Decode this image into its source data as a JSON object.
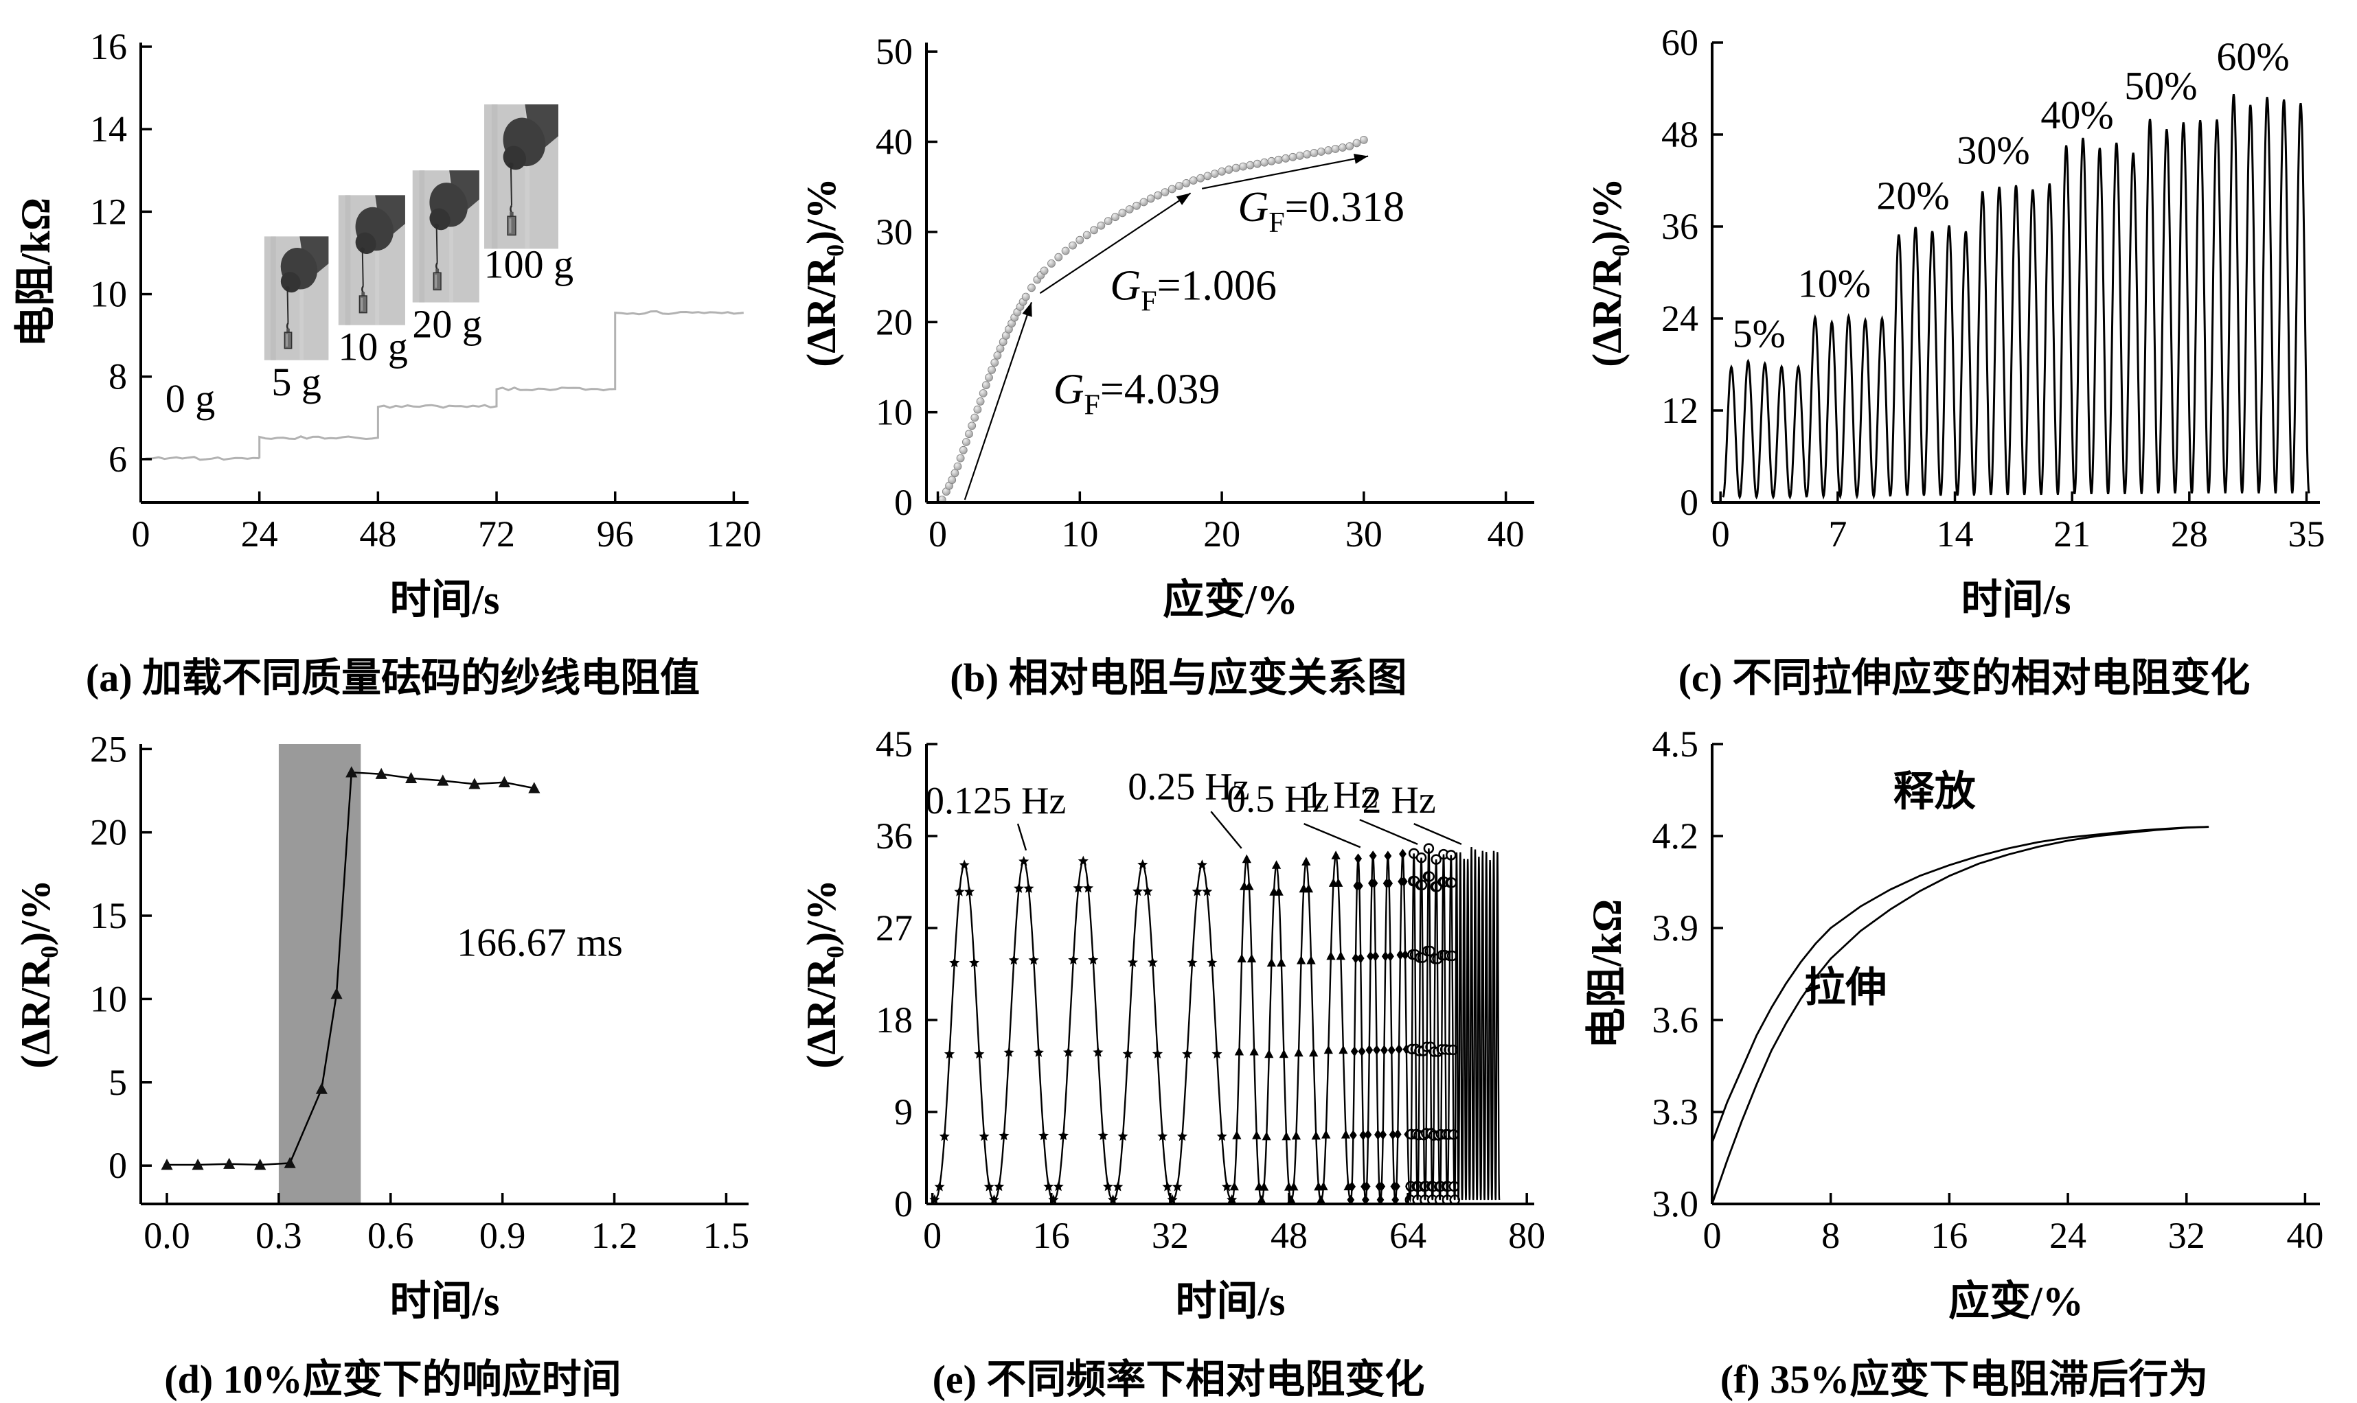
{
  "chart_data": [
    {
      "id": "a",
      "type": "line",
      "caption": "(a) 加载不同质量砝码的纱线电阻值",
      "xlabel": "时间/s",
      "ylabel": "电阻/kΩ",
      "xlim": [
        0,
        123
      ],
      "ylim": [
        4.95,
        16.1
      ],
      "xticks": {
        "values": [
          0,
          24,
          48,
          72,
          96,
          120
        ],
        "labels": [
          "0",
          "24",
          "48",
          "72",
          "96",
          "120"
        ]
      },
      "yticks": {
        "values": [
          6,
          8,
          10,
          12,
          14,
          16
        ],
        "labels": [
          "6",
          "8",
          "10",
          "12",
          "14",
          "16"
        ]
      },
      "line_color": "#b2b2b2",
      "steps": [
        {
          "mass": "0 g",
          "x0": 0,
          "x1": 24,
          "y": 6.02
        },
        {
          "mass": "5 g",
          "x0": 24,
          "x1": 48,
          "y": 6.52
        },
        {
          "mass": "10 g",
          "x0": 48,
          "x1": 72,
          "y": 7.28
        },
        {
          "mass": "20 g",
          "x0": 72,
          "x1": 96,
          "y": 7.7
        },
        {
          "mass": "100 g",
          "x0": 96,
          "x1": 122,
          "y": 9.55
        }
      ],
      "labels": [
        {
          "text": "0 g",
          "x": 10,
          "y": 7.15
        },
        {
          "text": "5 g",
          "x": 31.5,
          "y": 7.55
        },
        {
          "text": "10 g",
          "x": 47,
          "y": 8.4
        },
        {
          "text": "20 g",
          "x": 62,
          "y": 8.95
        },
        {
          "text": "100 g",
          "x": 78.5,
          "y": 10.4
        }
      ],
      "photos": [
        {
          "x0": 25,
          "x1": 38,
          "y0": 8.4,
          "y1": 11.4
        },
        {
          "x0": 40,
          "x1": 53.5,
          "y0": 9.25,
          "y1": 12.4
        },
        {
          "x0": 55,
          "x1": 68.5,
          "y0": 9.8,
          "y1": 13.0
        },
        {
          "x0": 69.5,
          "x1": 84.5,
          "y0": 11.1,
          "y1": 14.6
        }
      ]
    },
    {
      "id": "b",
      "type": "scatter",
      "caption": "(b) 相对电阻与应变关系图",
      "xlabel": "应变/%",
      "ylabel": "(ΔR/R₀)/%",
      "xlim": [
        -0.8,
        42
      ],
      "ylim": [
        0,
        51
      ],
      "xticks": {
        "values": [
          0,
          10,
          20,
          30,
          40
        ],
        "labels": [
          "0",
          "10",
          "20",
          "30",
          "40"
        ]
      },
      "yticks": {
        "values": [
          0,
          10,
          20,
          30,
          40,
          50
        ],
        "labels": [
          "0",
          "10",
          "20",
          "30",
          "40",
          "50"
        ]
      },
      "marker_fill": "#b0b0b0",
      "marker_edge": "#7f7f7f",
      "points": [
        [
          0.3,
          0.3
        ],
        [
          0.6,
          1.2
        ],
        [
          1,
          2.5
        ],
        [
          1.4,
          4
        ],
        [
          1.8,
          5.8
        ],
        [
          2.2,
          7.6
        ],
        [
          2.6,
          9.4
        ],
        [
          3,
          11.2
        ],
        [
          3.4,
          13
        ],
        [
          3.8,
          14.7
        ],
        [
          4.2,
          16.3
        ],
        [
          4.6,
          17.8
        ],
        [
          5,
          19.2
        ],
        [
          5.4,
          20.5
        ],
        [
          5.8,
          21.7
        ],
        [
          6.2,
          22.8
        ],
        [
          6.6,
          23.8
        ],
        [
          7,
          24.7
        ],
        [
          7.5,
          25.7
        ],
        [
          8,
          26.5
        ],
        [
          8.5,
          27.2
        ],
        [
          9,
          27.9
        ],
        [
          9.5,
          28.5
        ],
        [
          10,
          29.1
        ],
        [
          11,
          30.2
        ],
        [
          12,
          31.2
        ],
        [
          13,
          32.1
        ],
        [
          14,
          32.9
        ],
        [
          15,
          33.7
        ],
        [
          16,
          34.4
        ],
        [
          17,
          35.1
        ],
        [
          18,
          35.7
        ],
        [
          19,
          36.2
        ],
        [
          20,
          36.7
        ],
        [
          21,
          37.1
        ],
        [
          22,
          37.4
        ],
        [
          23,
          37.7
        ],
        [
          24,
          38.0
        ],
        [
          25,
          38.3
        ],
        [
          26,
          38.6
        ],
        [
          27,
          38.9
        ],
        [
          28,
          39.2
        ],
        [
          29,
          39.5
        ],
        [
          30,
          40.2
        ]
      ],
      "fit_lines": [
        {
          "x1": 1.9,
          "y1": 0.3,
          "x2": 6.6,
          "y2": 22.2
        },
        {
          "x1": 7.2,
          "y1": 23.2,
          "x2": 17.8,
          "y2": 34.3
        },
        {
          "x1": 18.6,
          "y1": 34.8,
          "x2": 30.3,
          "y2": 38.4
        }
      ],
      "gf_labels": [
        {
          "pre": "G",
          "sub": "F",
          "post": "=4.039",
          "x": 14,
          "y": 11
        },
        {
          "pre": "G",
          "sub": "F",
          "post": "=1.006",
          "x": 18,
          "y": 22.5
        },
        {
          "pre": "G",
          "sub": "F",
          "post": "=0.318",
          "x": 27,
          "y": 31.2
        }
      ]
    },
    {
      "id": "c",
      "type": "line",
      "caption": "(c) 不同拉伸应变的相对电阻变化",
      "xlabel": "时间/s",
      "ylabel": "(ΔR/R₀)/%",
      "xlim": [
        -0.5,
        35.8
      ],
      "ylim": [
        0,
        60
      ],
      "xticks": {
        "values": [
          0,
          7,
          14,
          21,
          28,
          35
        ],
        "labels": [
          "0",
          "7",
          "14",
          "21",
          "28",
          "35"
        ]
      },
      "yticks": {
        "values": [
          0,
          12,
          24,
          36,
          48,
          60
        ],
        "labels": [
          "0",
          "12",
          "24",
          "36",
          "48",
          "60"
        ]
      },
      "line_color": "#000000",
      "wave_groups": [
        {
          "label": "5%",
          "x0": 0.15,
          "x1": 5.15,
          "cycles": 5,
          "peak": 18.0,
          "valley": 0.7,
          "label_x": 2.3,
          "label_y": 20.3
        },
        {
          "label": "10%",
          "x0": 5.15,
          "x1": 10.15,
          "cycles": 5,
          "peak": 24.0,
          "valley": 0.8,
          "label_x": 6.8,
          "label_y": 26.8
        },
        {
          "label": "20%",
          "x0": 10.15,
          "x1": 15.15,
          "cycles": 5,
          "peak": 35.5,
          "valley": 0.9,
          "label_x": 11.5,
          "label_y": 38.3
        },
        {
          "label": "30%",
          "x0": 15.15,
          "x1": 20.15,
          "cycles": 5,
          "peak": 41.5,
          "valley": 1.0,
          "label_x": 16.3,
          "label_y": 44.2
        },
        {
          "label": "40%",
          "x0": 20.15,
          "x1": 25.15,
          "cycles": 5,
          "peak": 46.5,
          "valley": 1.1,
          "label_x": 21.3,
          "label_y": 48.8
        },
        {
          "label": "50%",
          "x0": 25.15,
          "x1": 30.15,
          "cycles": 5,
          "peak": 49.5,
          "valley": 1.2,
          "label_x": 26.3,
          "label_y": 52.6
        },
        {
          "label": "60%",
          "x0": 30.15,
          "x1": 35.15,
          "cycles": 5,
          "peak": 53.0,
          "valley": 1.2,
          "label_x": 31.8,
          "label_y": 56.4
        }
      ]
    },
    {
      "id": "d",
      "type": "line",
      "caption": "(d) 10%应变下的响应时间",
      "xlabel": "时间/s",
      "ylabel": "(ΔR/R₀)/%",
      "xlim": [
        -0.07,
        1.56
      ],
      "ylim": [
        -2.3,
        25.3
      ],
      "xticks": {
        "values": [
          0,
          0.3,
          0.6,
          0.9,
          1.2,
          1.5
        ],
        "labels": [
          "0.0",
          "0.3",
          "0.6",
          "0.9",
          "1.2",
          "1.5"
        ]
      },
      "yticks": {
        "values": [
          0,
          5,
          10,
          15,
          20,
          25
        ],
        "labels": [
          "0",
          "5",
          "10",
          "15",
          "20",
          "25"
        ]
      },
      "band": {
        "x0": 0.3,
        "x1": 0.52,
        "color": "#9a9a9a"
      },
      "marker": "triangle",
      "points": [
        [
          0,
          0.05
        ],
        [
          0.083,
          0.05
        ],
        [
          0.167,
          0.1
        ],
        [
          0.25,
          0.05
        ],
        [
          0.33,
          0.15
        ],
        [
          0.415,
          4.6
        ],
        [
          0.455,
          10.3
        ],
        [
          0.495,
          23.6
        ],
        [
          0.575,
          23.5
        ],
        [
          0.655,
          23.25
        ],
        [
          0.74,
          23.1
        ],
        [
          0.825,
          22.9
        ],
        [
          0.905,
          23.0
        ],
        [
          0.985,
          22.65
        ]
      ],
      "annotation": {
        "text": "166.67 ms",
        "x": 1.0,
        "y": 12.6
      }
    },
    {
      "id": "e",
      "type": "line",
      "caption": "(e) 不同频率下相对电阻变化",
      "xlabel": "时间/s",
      "ylabel": "(ΔR/R₀)/%",
      "xlim": [
        -0.8,
        81
      ],
      "ylim": [
        0,
        45
      ],
      "xticks": {
        "values": [
          0,
          16,
          32,
          48,
          64,
          80
        ],
        "labels": [
          "0",
          "16",
          "32",
          "48",
          "64",
          "80"
        ]
      },
      "yticks": {
        "values": [
          0,
          9,
          18,
          27,
          36,
          45
        ],
        "labels": [
          "0",
          "9",
          "18",
          "27",
          "36",
          "45"
        ]
      },
      "freq_groups": [
        {
          "label": "0.125 Hz",
          "x0": 0.3,
          "x1": 40.3,
          "period": 8,
          "peak": 33.6,
          "valley": 0.4,
          "marker": "star",
          "label_x": 8.5,
          "label_y": 38.2,
          "leader": [
            [
              11.5,
              37.2
            ],
            [
              12.6,
              34.6
            ]
          ]
        },
        {
          "label": "0.25 Hz",
          "x0": 40.3,
          "x1": 56.3,
          "period": 4,
          "peak": 33.8,
          "valley": 0.4,
          "marker": "triangle",
          "label_x": 34.5,
          "label_y": 39.6,
          "leader": [
            [
              37.5,
              38.4
            ],
            [
              41.6,
              34.8
            ]
          ]
        },
        {
          "label": "0.5 Hz",
          "x0": 56.3,
          "x1": 64.3,
          "period": 2,
          "peak": 34.0,
          "valley": 0.4,
          "marker": "diamond",
          "label_x": 46.5,
          "label_y": 38.4,
          "leader": [
            [
              50,
              37.2
            ],
            [
              57.6,
              34.9
            ]
          ]
        },
        {
          "label": "1 Hz",
          "x0": 64.3,
          "x1": 70.3,
          "period": 1,
          "peak": 34.3,
          "valley": 0.4,
          "marker": "circle",
          "label_x": 55,
          "label_y": 38.8,
          "leader": [
            [
              57.5,
              37.6
            ],
            [
              65.3,
              35.2
            ]
          ]
        },
        {
          "label": "2 Hz",
          "x0": 70.3,
          "x1": 76.3,
          "period": 0.5,
          "peak": 34.3,
          "valley": 0.4,
          "marker": "none",
          "label_x": 62.8,
          "label_y": 38.3,
          "leader": [
            [
              64.8,
              37.2
            ],
            [
              71.2,
              35.2
            ]
          ]
        }
      ]
    },
    {
      "id": "f",
      "type": "line",
      "caption": "(f) 35%应变下电阻滞后行为",
      "xlabel": "应变/%",
      "ylabel": "电阻/kΩ",
      "xlim": [
        0,
        41
      ],
      "ylim": [
        3.0,
        4.5
      ],
      "xticks": {
        "values": [
          0,
          8,
          16,
          24,
          32,
          40
        ],
        "labels": [
          "0",
          "8",
          "16",
          "24",
          "32",
          "40"
        ]
      },
      "yticks": {
        "values": [
          3.0,
          3.3,
          3.6,
          3.9,
          4.2,
          4.5
        ],
        "labels": [
          "3.0",
          "3.3",
          "3.6",
          "3.9",
          "4.2",
          "4.5"
        ]
      },
      "curves": [
        {
          "name": "拉伸",
          "label_x": 9,
          "label_y": 3.66,
          "points": [
            [
              0,
              3.0
            ],
            [
              1,
              3.14
            ],
            [
              2,
              3.27
            ],
            [
              3,
              3.39
            ],
            [
              4,
              3.5
            ],
            [
              5,
              3.59
            ],
            [
              6,
              3.67
            ],
            [
              7,
              3.74
            ],
            [
              8,
              3.8
            ],
            [
              10,
              3.89
            ],
            [
              12,
              3.96
            ],
            [
              14,
              4.02
            ],
            [
              16,
              4.07
            ],
            [
              18,
              4.11
            ],
            [
              20,
              4.14
            ],
            [
              22,
              4.165
            ],
            [
              24,
              4.185
            ],
            [
              26,
              4.2
            ],
            [
              28,
              4.21
            ],
            [
              30,
              4.22
            ],
            [
              32,
              4.227
            ],
            [
              33.5,
              4.23
            ]
          ]
        },
        {
          "name": "释放",
          "label_x": 15,
          "label_y": 4.3,
          "points": [
            [
              33.5,
              4.23
            ],
            [
              32,
              4.228
            ],
            [
              30,
              4.222
            ],
            [
              28,
              4.215
            ],
            [
              26,
              4.205
            ],
            [
              24,
              4.195
            ],
            [
              22,
              4.18
            ],
            [
              20,
              4.16
            ],
            [
              18,
              4.135
            ],
            [
              16,
              4.105
            ],
            [
              14,
              4.07
            ],
            [
              12,
              4.025
            ],
            [
              10,
              3.97
            ],
            [
              8,
              3.9
            ],
            [
              7,
              3.85
            ],
            [
              6,
              3.79
            ],
            [
              5,
              3.72
            ],
            [
              4,
              3.64
            ],
            [
              3,
              3.55
            ],
            [
              2,
              3.44
            ],
            [
              1,
              3.33
            ],
            [
              0,
              3.2
            ]
          ]
        }
      ]
    }
  ]
}
